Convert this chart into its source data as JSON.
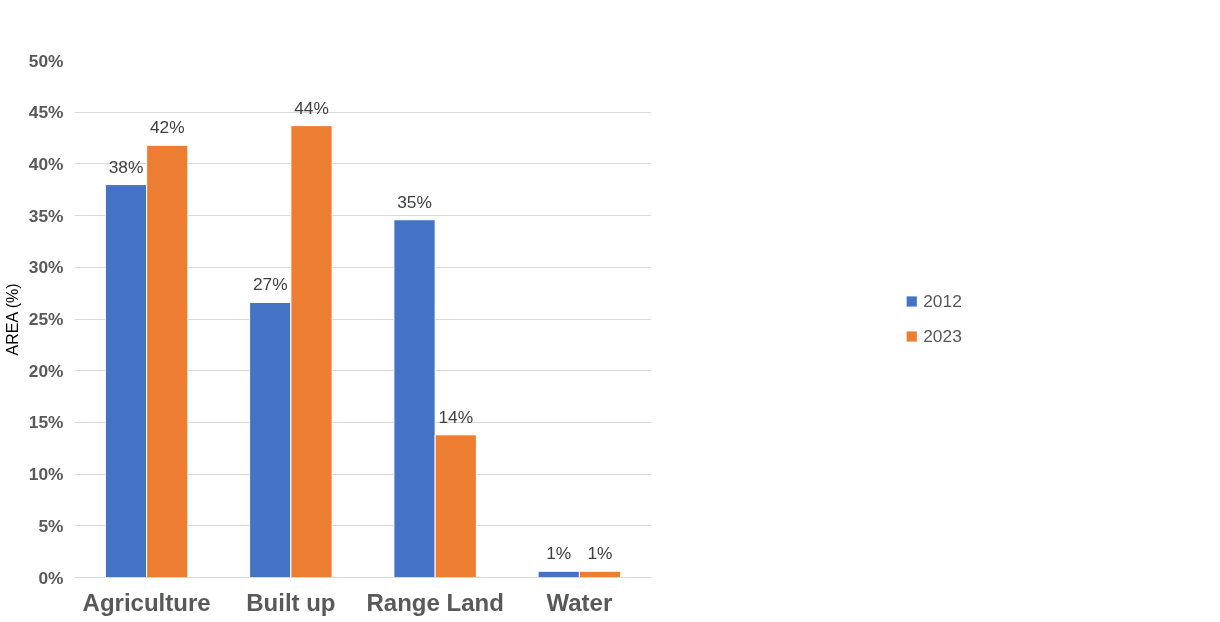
{
  "chart_data": {
    "type": "bar",
    "ylabel": "AREA (%)",
    "categories": [
      "Agriculture",
      "Built up",
      "Range Land",
      "Water"
    ],
    "series": [
      {
        "name": "2012",
        "color": "#4472c4",
        "values": [
          38.0,
          26.6,
          34.6,
          0.6
        ],
        "value_labels": [
          "38%",
          "27%",
          "35%",
          "1%"
        ]
      },
      {
        "name": "2023",
        "color": "#ed7d31",
        "values": [
          41.8,
          43.7,
          13.8,
          0.6
        ],
        "value_labels": [
          "42%",
          "44%",
          "14%",
          "1%"
        ]
      }
    ],
    "ylim": [
      0,
      50
    ],
    "yticks": [
      {
        "value": 0,
        "label": "0%"
      },
      {
        "value": 5,
        "label": "5%"
      },
      {
        "value": 10,
        "label": "10%"
      },
      {
        "value": 15,
        "label": "15%"
      },
      {
        "value": 20,
        "label": "20%"
      },
      {
        "value": 25,
        "label": "25%"
      },
      {
        "value": 30,
        "label": "30%"
      },
      {
        "value": 35,
        "label": "35%"
      },
      {
        "value": 40,
        "label": "40%"
      },
      {
        "value": 45,
        "label": "45%"
      },
      {
        "value": 50,
        "label": "50%"
      }
    ],
    "grid": "y",
    "legend": "right"
  }
}
